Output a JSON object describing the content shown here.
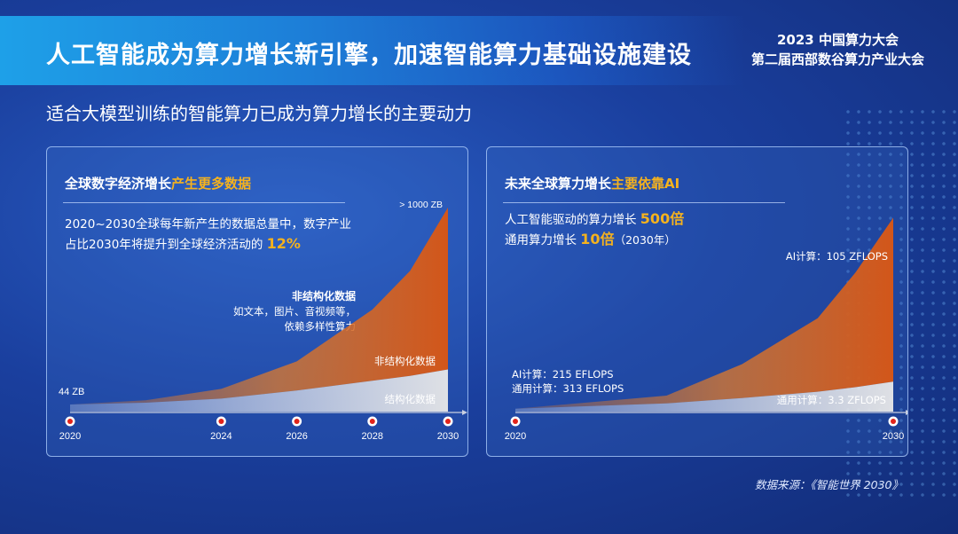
{
  "header": {
    "title": "人工智能成为算力增长新引擎，加速智能算力基础设施建设",
    "event_line1": "2023 中国算力大会",
    "event_line2": "第二届西部数谷算力产业大会"
  },
  "subtitle": "适合大模型训练的智能算力已成为算力增长的主要动力",
  "panel1": {
    "title_a": "全球数字经济增长",
    "title_b": "产生更多数据",
    "desc_line1": "2020~2030全球每年新产生的数据总量中，数字产业",
    "desc_line2a": "占比2030年将提升到全球经济活动的 ",
    "desc_highlight": "12%",
    "annot_title": "非结构化数据",
    "annot_line1": "如文本，图片、音视频等，",
    "annot_line2": "依赖多样性算力"
  },
  "panel2": {
    "title_a": "未来全球算力增长",
    "title_b": "主要依靠AI",
    "desc1a": "人工智能驱动的算力增长 ",
    "desc1_hl": "500倍",
    "desc2a": "通用算力增长 ",
    "desc2_hl": "10倍",
    "desc2b": "（2030年）"
  },
  "source": "数据来源：《智能世界 2030》",
  "colors": {
    "accent": "#f5b21e",
    "orange": "#d9601a",
    "grey": "#d9d9d9"
  },
  "chart_data": [
    {
      "type": "area",
      "x": [
        2020,
        2022,
        2024,
        2026,
        2028,
        2029,
        2030
      ],
      "x_ticks": [
        "2020",
        "2024",
        "2026",
        "2028",
        "2030"
      ],
      "series": [
        {
          "name": "结构化数据",
          "values": [
            44,
            55,
            80,
            130,
            190,
            220,
            260
          ]
        },
        {
          "name": "非结构化数据",
          "values": [
            0,
            15,
            60,
            180,
            440,
            650,
            1000
          ]
        }
      ],
      "labels": {
        "start": "44 ZB",
        "end": "> 1000 ZB"
      }
    },
    {
      "type": "area",
      "x": [
        2020,
        2024,
        2026,
        2028,
        2029,
        2030
      ],
      "x_ticks": [
        "2020",
        "2030"
      ],
      "series": [
        {
          "name": "通用计算",
          "values": [
            313,
            900,
            1500,
            2200,
            2700,
            3300
          ]
        },
        {
          "name": "AI计算",
          "values": [
            215,
            8000,
            25000,
            50000,
            75000,
            105000
          ]
        }
      ],
      "labels": {
        "start_ai": "AI计算：215 EFLOPS",
        "start_gen": "通用计算：313 EFLOPS",
        "end_ai": "AI计算：105 ZFLOPS",
        "end_gen": "通用计算：3.3 ZFLOPS"
      }
    }
  ]
}
